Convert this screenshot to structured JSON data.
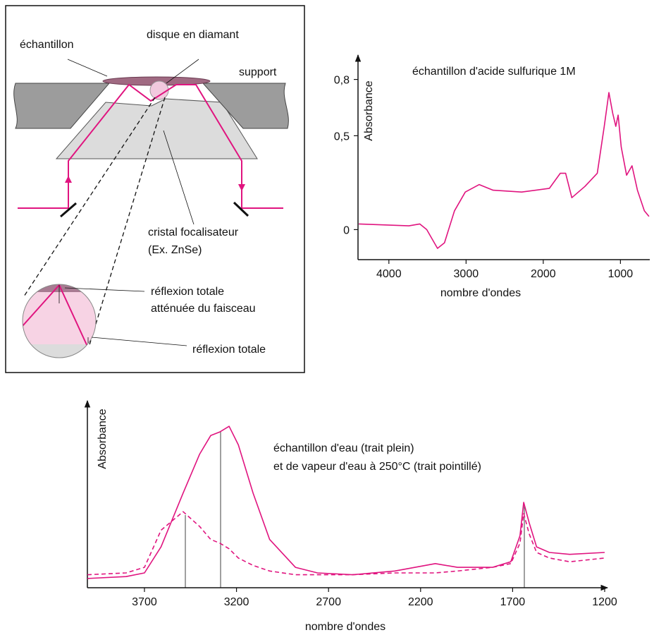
{
  "diagram": {
    "labels": {
      "sample": "échantillon",
      "diamond": "disque en diamant",
      "support": "support",
      "crystal": "cristal focalisateur",
      "crystal_example": "(Ex. ZnSe)",
      "attenuated_1": "réflexion totale",
      "attenuated_2": "atténuée du faisceau",
      "total": "réflexion totale"
    }
  },
  "chart_data": [
    {
      "type": "line",
      "title": "échantillon d'acide sulfurique 1M",
      "x_label": "nombre d'ondes",
      "y_label": "Absorbance",
      "x": [
        4390,
        3740,
        3600,
        3510,
        3370,
        3280,
        3150,
        3010,
        2830,
        2650,
        2280,
        1920,
        1780,
        1710,
        1630,
        1460,
        1300,
        1210,
        1150,
        1100,
        1060,
        1030,
        990,
        920,
        850,
        780,
        690,
        630
      ],
      "series": [
        {
          "color": "#e0147f",
          "style": "solid",
          "values": [
            0.03,
            0.02,
            0.03,
            0.0,
            -0.1,
            -0.07,
            0.1,
            0.2,
            0.24,
            0.21,
            0.2,
            0.22,
            0.3,
            0.3,
            0.17,
            0.23,
            0.3,
            0.55,
            0.73,
            0.62,
            0.55,
            0.61,
            0.44,
            0.29,
            0.34,
            0.21,
            0.1,
            0.07
          ]
        }
      ],
      "xlim": [
        4400,
        620
      ],
      "xticks": [
        4000,
        3000,
        2000,
        1000
      ],
      "ylim": [
        -0.16,
        0.93
      ],
      "yticks": [
        0,
        {
          "value": 0.5,
          "label": "0,5"
        },
        {
          "value": 0.8,
          "label": "0,8"
        }
      ],
      "grid": false
    },
    {
      "type": "line",
      "x_label": "nombre d'ondes",
      "y_label": "Absorbance",
      "annotations": [
        "échantillon d'eau (trait plein)",
        "et de vapeur d'eau à 250°C (trait pointillé)"
      ],
      "x": [
        4010,
        3800,
        3700,
        3610,
        3490,
        3400,
        3340,
        3290,
        3240,
        3190,
        3110,
        3020,
        2880,
        2760,
        2570,
        2340,
        2120,
        2000,
        1810,
        1710,
        1660,
        1640,
        1610,
        1570,
        1500,
        1390,
        1200
      ],
      "series": [
        {
          "color": "#e0147f",
          "style": "solid",
          "values": [
            5,
            6,
            8,
            22,
            51,
            72,
            82,
            84,
            87,
            77,
            51,
            26,
            11,
            8,
            7,
            9,
            13,
            11,
            11,
            14,
            28,
            46,
            35,
            22,
            19,
            18,
            19
          ]
        },
        {
          "color": "#e0147f",
          "style": "dashed",
          "values": [
            7,
            8,
            11,
            31,
            41,
            33,
            26,
            24,
            21,
            16,
            12,
            9,
            7,
            7,
            7,
            8,
            8,
            9,
            11,
            13,
            24,
            40,
            29,
            19,
            16,
            14,
            16
          ]
        }
      ],
      "xlim": [
        4010,
        1200
      ],
      "xticks": [
        3700,
        3200,
        2700,
        2200,
        1700,
        1200
      ],
      "ylim": [
        0,
        100
      ],
      "yticks": [],
      "grid": false
    }
  ]
}
